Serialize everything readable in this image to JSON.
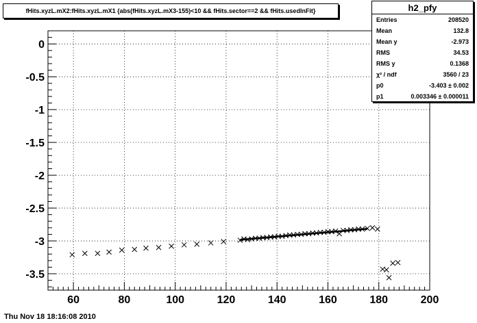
{
  "chart_data": {
    "type": "scatter",
    "title": "fHits.xyzL.mX2:fHits.xyzL.mX1  {abs(fHits.xyzL.mX3-155)<10 && fHits.sector==2  && fHits.usedInFit}",
    "xlabel": "",
    "ylabel": "",
    "xlim": [
      50,
      200
    ],
    "ylim": [
      -3.75,
      0.2
    ],
    "grid": true,
    "x_ticks": [
      60,
      80,
      100,
      120,
      140,
      160,
      180,
      200
    ],
    "x_tick_labels": [
      "60",
      "80",
      "100",
      "120",
      "140",
      "160",
      "180",
      "200"
    ],
    "y_ticks": [
      0,
      -0.5,
      -1,
      -1.5,
      -2,
      -2.5,
      -3,
      -3.5
    ],
    "y_tick_labels": [
      "0",
      "-0.5",
      "-1",
      "-1.5",
      "-2",
      "-2.5",
      "-3",
      "-3.5"
    ],
    "points": [
      [
        59.5,
        -3.21
      ],
      [
        64.5,
        -3.19
      ],
      [
        69.5,
        -3.19
      ],
      [
        74,
        -3.17
      ],
      [
        79,
        -3.14
      ],
      [
        84,
        -3.13
      ],
      [
        88.5,
        -3.11
      ],
      [
        93.5,
        -3.1
      ],
      [
        98.5,
        -3.08
      ],
      [
        103.5,
        -3.06
      ],
      [
        108.5,
        -3.05
      ],
      [
        114,
        -3.03
      ],
      [
        119,
        -3.01
      ],
      [
        125.5,
        -2.99
      ],
      [
        127,
        -2.97
      ],
      [
        128.5,
        -2.98
      ],
      [
        130,
        -2.97
      ],
      [
        131.5,
        -2.96
      ],
      [
        133,
        -2.96
      ],
      [
        134.5,
        -2.95
      ],
      [
        136,
        -2.95
      ],
      [
        137.5,
        -2.94
      ],
      [
        139,
        -2.94
      ],
      [
        140.5,
        -2.93
      ],
      [
        142,
        -2.93
      ],
      [
        143.5,
        -2.92
      ],
      [
        145,
        -2.91
      ],
      [
        146.5,
        -2.91
      ],
      [
        148,
        -2.9
      ],
      [
        149.5,
        -2.9
      ],
      [
        151,
        -2.89
      ],
      [
        152.5,
        -2.89
      ],
      [
        154,
        -2.88
      ],
      [
        155.5,
        -2.88
      ],
      [
        157,
        -2.87
      ],
      [
        158.5,
        -2.87
      ],
      [
        160,
        -2.86
      ],
      [
        161.5,
        -2.86
      ],
      [
        163,
        -2.85
      ],
      [
        164.5,
        -2.89
      ],
      [
        166,
        -2.84
      ],
      [
        167.5,
        -2.84
      ],
      [
        169,
        -2.83
      ],
      [
        170.5,
        -2.83
      ],
      [
        172,
        -2.82
      ],
      [
        173.5,
        -2.82
      ],
      [
        175.5,
        -2.81
      ],
      [
        177.5,
        -2.8
      ],
      [
        179.5,
        -2.82
      ],
      [
        181.5,
        -3.43
      ],
      [
        183,
        -3.44
      ],
      [
        184,
        -3.56
      ],
      [
        185.5,
        -3.34
      ],
      [
        187.5,
        -3.33
      ]
    ],
    "fit_line": {
      "x": [
        125.5,
        175.5
      ],
      "p0": -3.403,
      "p1": 0.003346
    }
  },
  "stats_box": {
    "name": "h2_pfy",
    "rows": [
      {
        "key": "Entries",
        "value": "208520"
      },
      {
        "key": "Mean",
        "value": "132.8"
      },
      {
        "key": "Mean y",
        "value": "-2.973"
      },
      {
        "key": "RMS",
        "value": "34.53"
      },
      {
        "key": "RMS y",
        "value": "0.1368"
      },
      {
        "key": "χ² / ndf",
        "value": "3560 / 23"
      },
      {
        "key": "p0",
        "value": "-3.403 ± 0.002"
      },
      {
        "key": "p1",
        "value": "0.003346 ± 0.000011"
      }
    ]
  },
  "timestamp": "Thu Nov 18 18:16:08 2010"
}
